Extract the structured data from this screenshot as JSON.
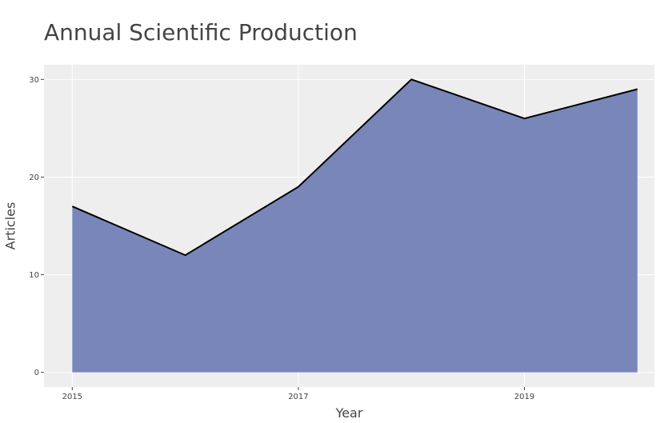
{
  "chart_data": {
    "type": "area",
    "title": "Annual Scientific Production",
    "xlabel": "Year",
    "ylabel": "Articles",
    "x": [
      2015,
      2016,
      2017,
      2018,
      2019,
      2020
    ],
    "series": [
      {
        "values": [
          17,
          12,
          19,
          30,
          26,
          29
        ]
      }
    ],
    "x_ticks": [
      "2015",
      "2017",
      "2019"
    ],
    "y_ticks": [
      "0",
      "10",
      "20",
      "30"
    ],
    "xlim": [
      2014.75,
      2020.15
    ],
    "ylim": [
      -1.5,
      31.5
    ],
    "grid": true,
    "colors": {
      "fill": "#7886BA",
      "line": "#000000",
      "plot_background": "#EEEEEE",
      "grid": "#FFFFFF",
      "text": "#444444"
    }
  }
}
